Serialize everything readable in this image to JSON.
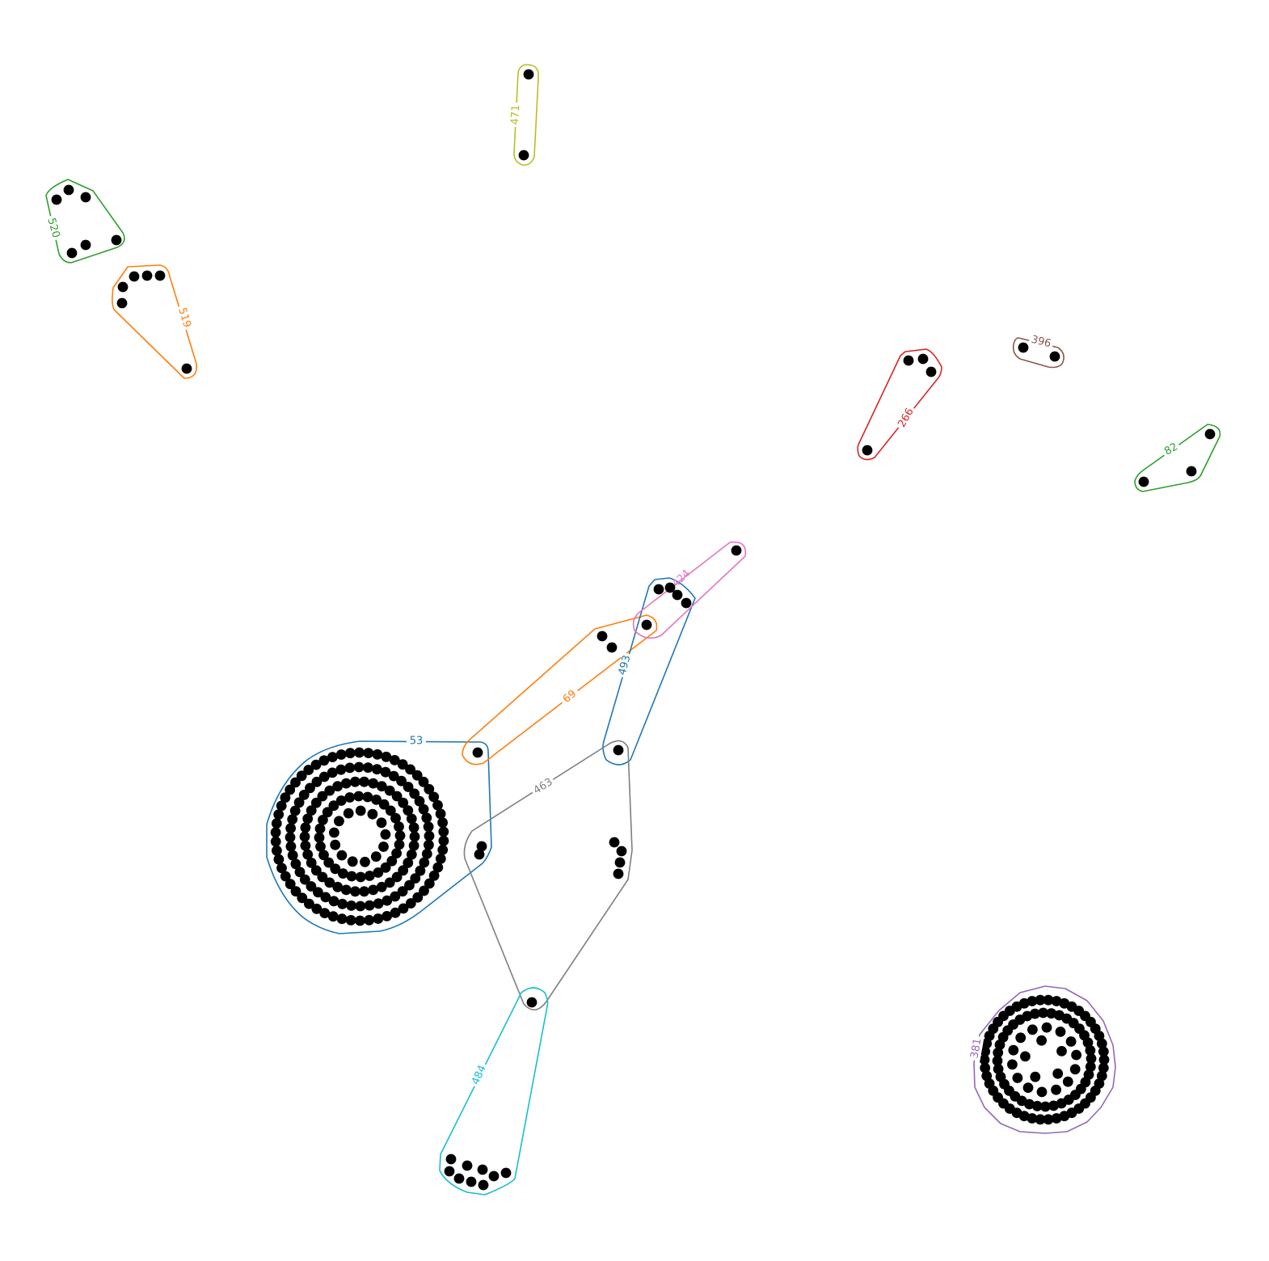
{
  "groups": [
    {
      "label": "53",
      "color": "#1f77b4"
    },
    {
      "label": "69",
      "color": "#ff7f0e"
    },
    {
      "label": "493",
      "color": "#1f77b4"
    },
    {
      "label": "424",
      "color": "#e377c2"
    },
    {
      "label": "463",
      "color": "#7f7f7f"
    },
    {
      "label": "484",
      "color": "#17becf"
    },
    {
      "label": "520",
      "color": "#2ca02c"
    },
    {
      "label": "519",
      "color": "#ff7f0e"
    },
    {
      "label": "471",
      "color": "#bcbd22"
    },
    {
      "label": "266",
      "color": "#d62728"
    },
    {
      "label": "396",
      "color": "#8c564b"
    },
    {
      "label": "82",
      "color": "#2ca02c"
    },
    {
      "label": "381",
      "color": "#9467bd"
    }
  ]
}
